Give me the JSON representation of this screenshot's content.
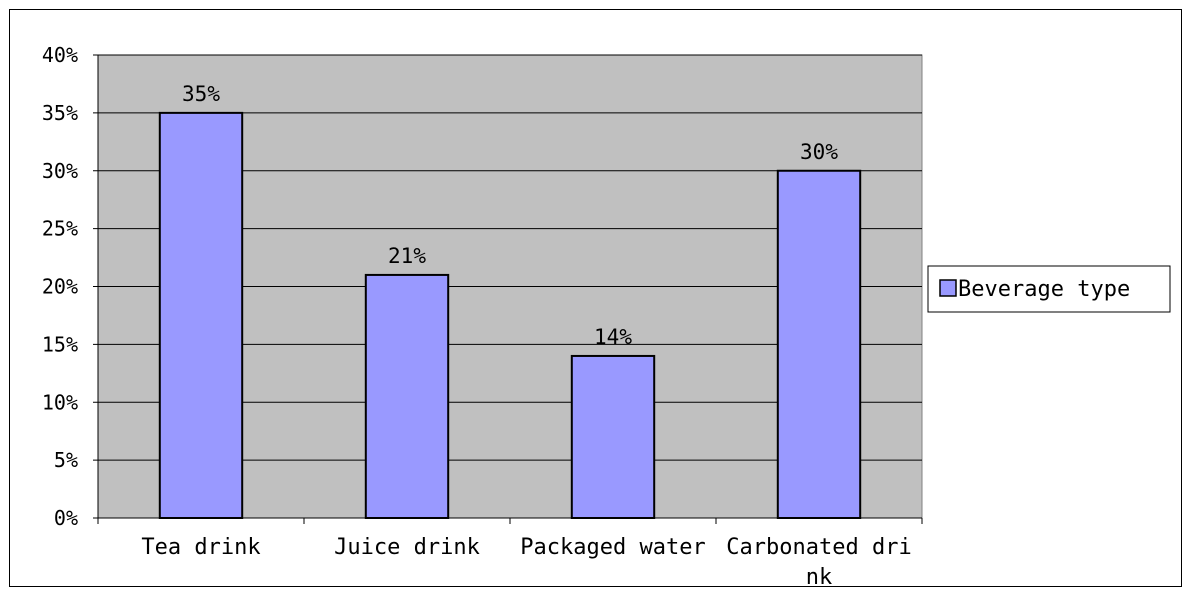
{
  "chart_data": {
    "type": "bar",
    "categories": [
      "Tea drink",
      "Juice drink",
      "Packaged water",
      "Carbonated dri\nnk"
    ],
    "series": [
      {
        "name": "Beverage type",
        "values": [
          35,
          21,
          14,
          30
        ],
        "color": "#9999ff"
      }
    ],
    "data_labels": [
      "35%",
      "21%",
      "14%",
      "30%"
    ],
    "y_ticks": [
      "0%",
      "5%",
      "10%",
      "15%",
      "20%",
      "25%",
      "30%",
      "35%",
      "40%"
    ],
    "ylim": [
      0,
      40
    ],
    "y_unit": "%",
    "grid": true,
    "plot_background": "#c0c0c0",
    "legend_position": "right"
  }
}
